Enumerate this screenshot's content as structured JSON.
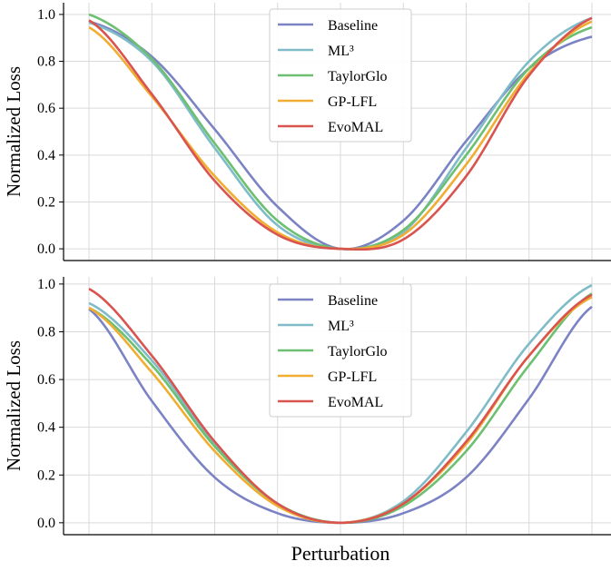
{
  "figure": {
    "xlabel": "Perturbation"
  },
  "chart_data": [
    {
      "type": "line",
      "panel": "top",
      "ylabel": "Normalized Loss",
      "xlabel": "",
      "xlim": [
        -1,
        1
      ],
      "ylim": [
        -0.05,
        1.05
      ],
      "yticks": [
        "0.0",
        "0.2",
        "0.4",
        "0.6",
        "0.8",
        "1.0"
      ],
      "xgrid_count": 9,
      "grid": true,
      "legend_position": "top-center",
      "x": [
        -1.0,
        -0.75,
        -0.5,
        -0.25,
        0.0,
        0.25,
        0.5,
        0.75,
        1.0
      ],
      "series": [
        {
          "name": "Baseline",
          "color": "#7b83c4",
          "values": [
            0.97,
            0.82,
            0.51,
            0.18,
            0.0,
            0.12,
            0.46,
            0.77,
            0.905
          ]
        },
        {
          "name": "ML³",
          "color": "#7fbcc8",
          "values": [
            0.965,
            0.8,
            0.43,
            0.1,
            0.0,
            0.07,
            0.43,
            0.8,
            0.985
          ]
        },
        {
          "name": "TaylorGlo",
          "color": "#6dbf71",
          "values": [
            1.0,
            0.81,
            0.45,
            0.12,
            0.0,
            0.08,
            0.4,
            0.77,
            0.945
          ]
        },
        {
          "name": "GP-LFL",
          "color": "#f0ad32",
          "values": [
            0.945,
            0.65,
            0.31,
            0.07,
            0.0,
            0.06,
            0.36,
            0.75,
            0.97
          ]
        },
        {
          "name": "EvoMAL",
          "color": "#d9534f",
          "values": [
            0.975,
            0.66,
            0.29,
            0.06,
            0.0,
            0.04,
            0.31,
            0.74,
            0.985
          ]
        }
      ]
    },
    {
      "type": "line",
      "panel": "bottom",
      "ylabel": "Normalized Loss",
      "xlabel": "",
      "xlim": [
        -1,
        1
      ],
      "ylim": [
        -0.05,
        1.03
      ],
      "yticks": [
        "0.0",
        "0.2",
        "0.4",
        "0.6",
        "0.8",
        "1.0"
      ],
      "xgrid_count": 9,
      "grid": true,
      "legend_position": "top-center",
      "x": [
        -1.0,
        -0.75,
        -0.5,
        -0.25,
        0.0,
        0.25,
        0.5,
        0.75,
        1.0
      ],
      "series": [
        {
          "name": "Baseline",
          "color": "#7b83c4",
          "values": [
            0.895,
            0.51,
            0.19,
            0.04,
            0.0,
            0.04,
            0.19,
            0.52,
            0.905
          ]
        },
        {
          "name": "ML³",
          "color": "#7fbcc8",
          "values": [
            0.92,
            0.68,
            0.33,
            0.08,
            0.0,
            0.09,
            0.38,
            0.75,
            0.995
          ]
        },
        {
          "name": "TaylorGlo",
          "color": "#6dbf71",
          "values": [
            0.9,
            0.66,
            0.32,
            0.08,
            0.0,
            0.07,
            0.3,
            0.66,
            0.96
          ]
        },
        {
          "name": "GP-LFL",
          "color": "#f0ad32",
          "values": [
            0.9,
            0.63,
            0.3,
            0.07,
            0.0,
            0.08,
            0.33,
            0.7,
            0.945
          ]
        },
        {
          "name": "EvoMAL",
          "color": "#d9534f",
          "values": [
            0.98,
            0.7,
            0.34,
            0.08,
            0.0,
            0.08,
            0.34,
            0.7,
            0.955
          ]
        }
      ]
    }
  ]
}
